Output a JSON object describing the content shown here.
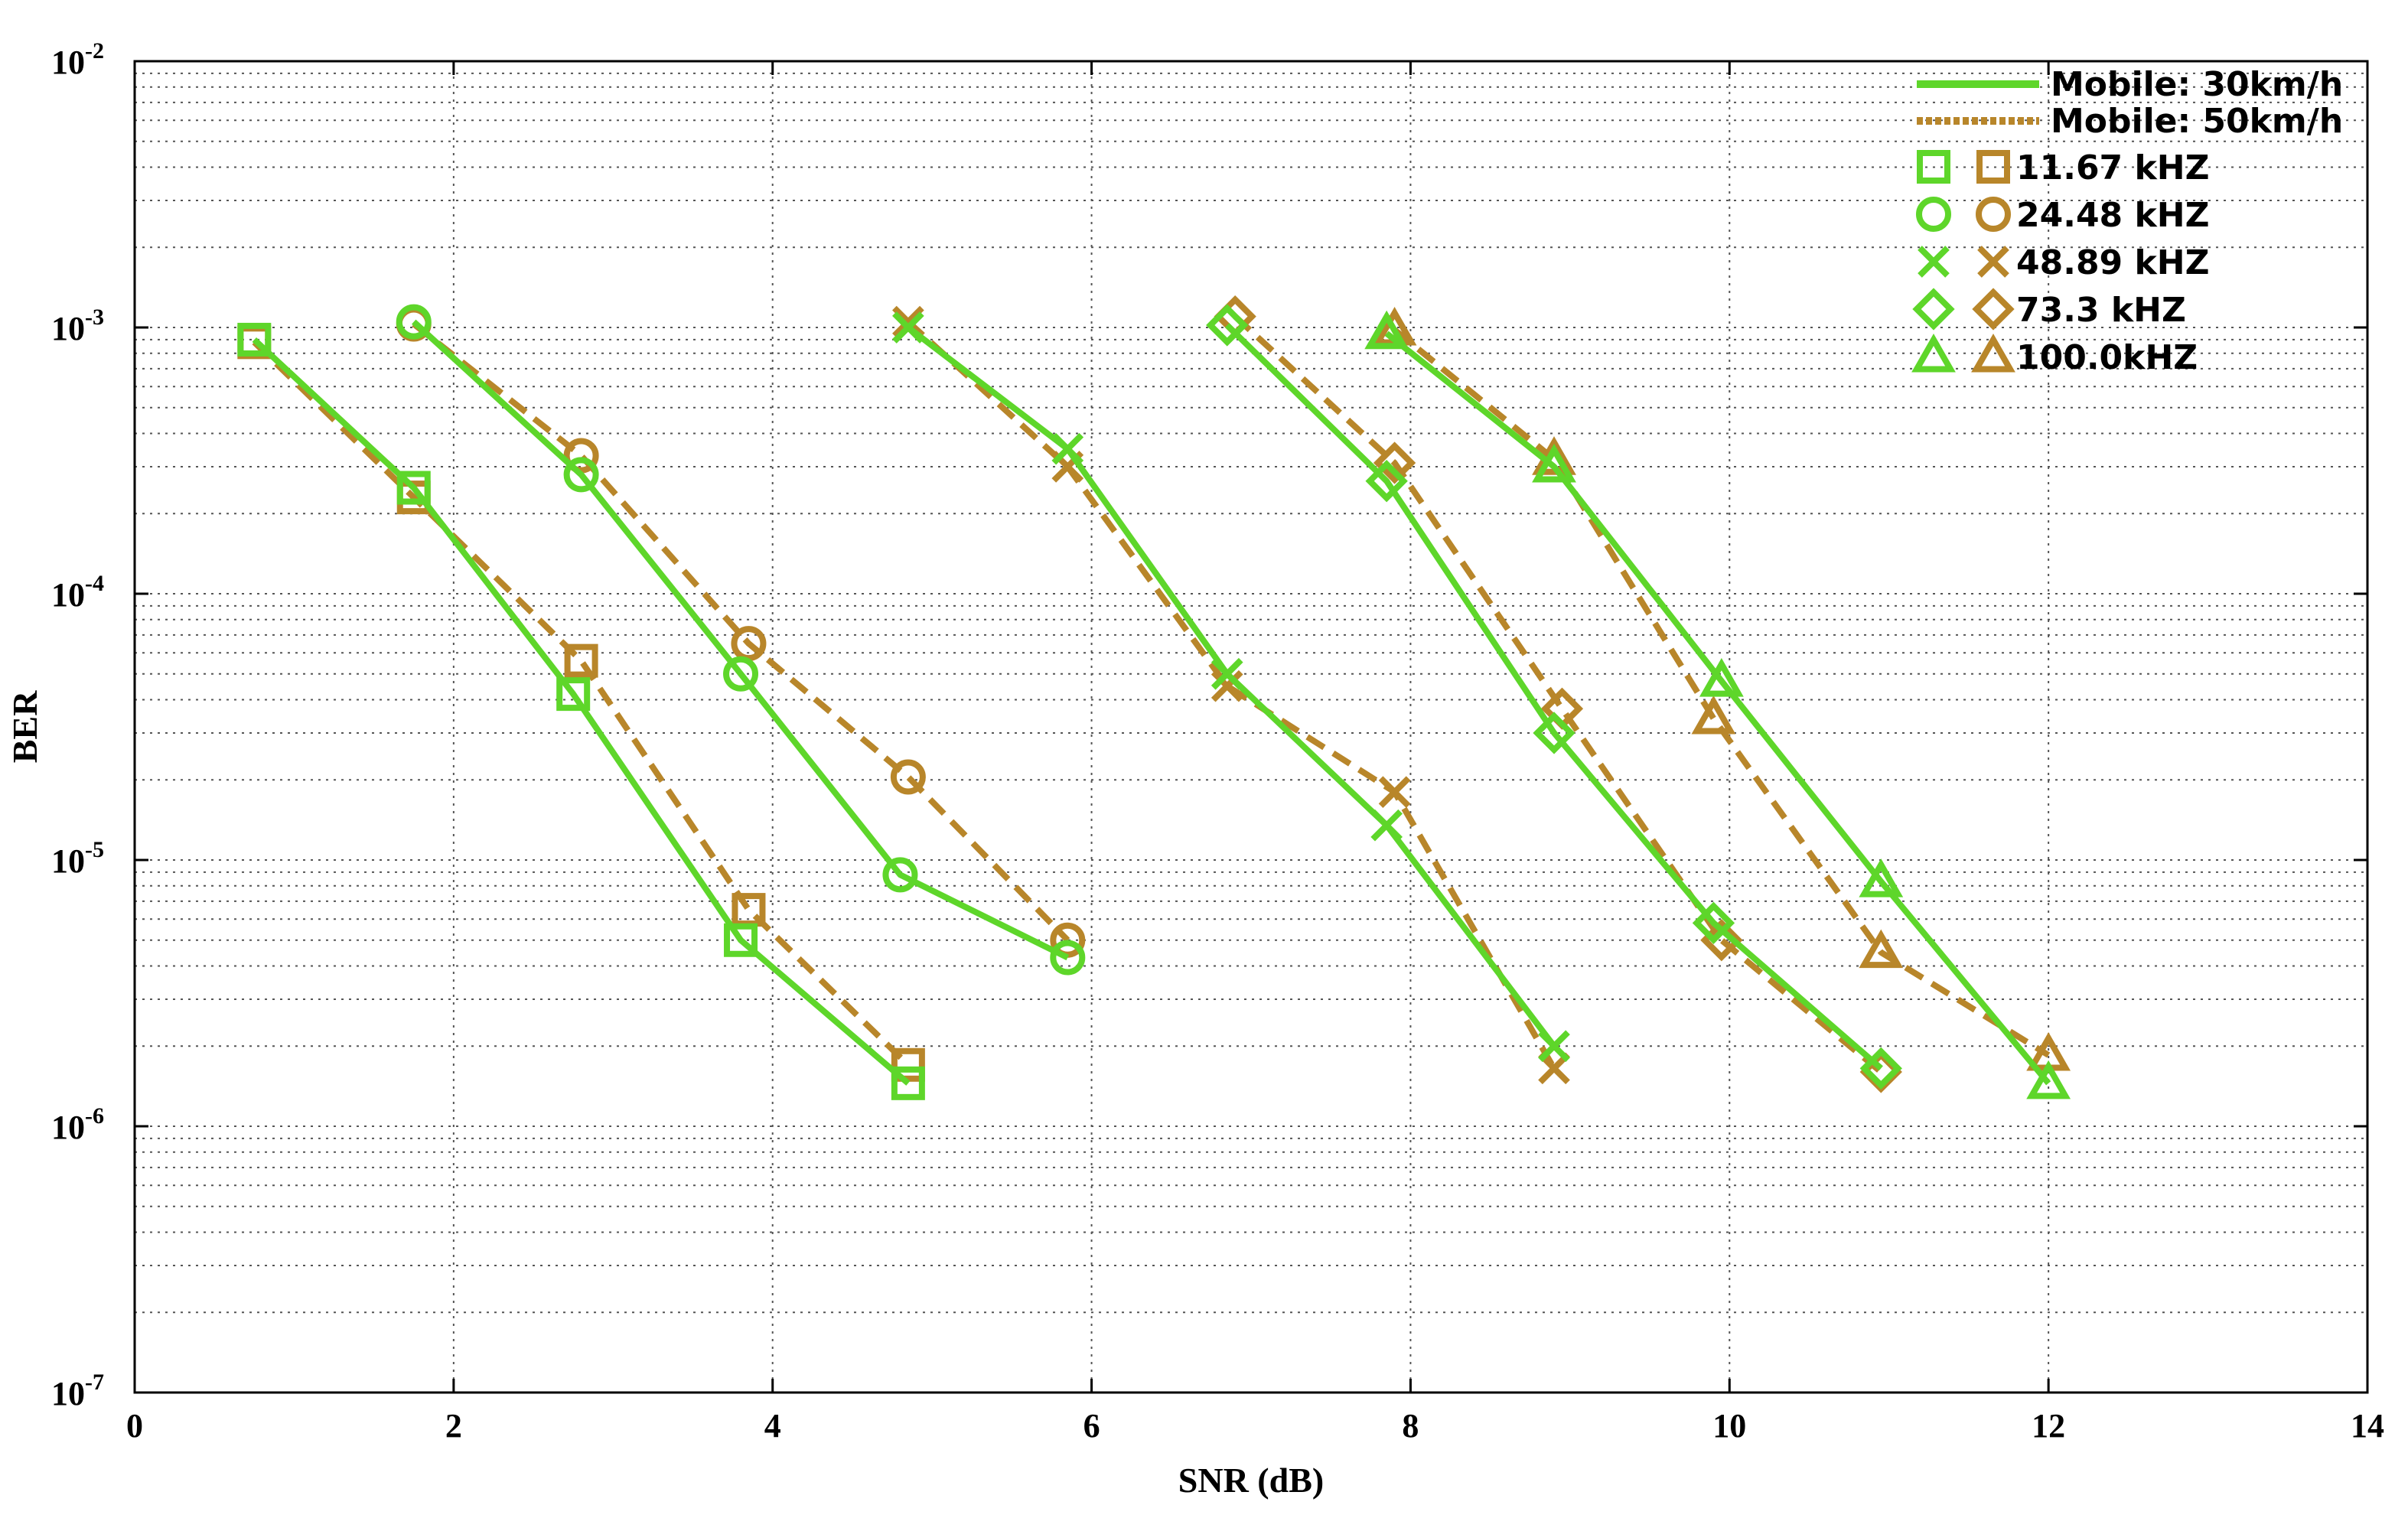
{
  "chart_data": {
    "type": "line",
    "title": "",
    "xlabel": "SNR (dB)",
    "ylabel": "BER",
    "xlim": [
      0,
      14
    ],
    "ylim": [
      1e-07,
      0.01
    ],
    "yscale": "log",
    "grid": true,
    "x_ticks": [
      "0",
      "2",
      "4",
      "6",
      "8",
      "10",
      "12",
      "14"
    ],
    "y_ticks": [
      {
        "base": "10",
        "exp": "-7"
      },
      {
        "base": "10",
        "exp": "-6"
      },
      {
        "base": "10",
        "exp": "-5"
      },
      {
        "base": "10",
        "exp": "-4"
      },
      {
        "base": "10",
        "exp": "-3"
      },
      {
        "base": "10",
        "exp": "-2"
      }
    ],
    "legend": {
      "position": "top-right",
      "line_entries": [
        {
          "label": "Mobile: 30km/h",
          "color": "#5ED62A",
          "style": "solid"
        },
        {
          "label": "Mobile: 50km/h",
          "color": "#B8862A",
          "style": "dashed"
        }
      ],
      "marker_entries": [
        {
          "label": "11.67 kHZ",
          "marker": "square"
        },
        {
          "label": "24.48 kHZ",
          "marker": "circle"
        },
        {
          "label": "48.89 kHZ",
          "marker": "x"
        },
        {
          "label": "73.3 kHZ",
          "marker": "diamond"
        },
        {
          "label": "100.0kHZ",
          "marker": "triangle"
        }
      ]
    },
    "colors": {
      "speed30": "#5ED62A",
      "speed50": "#B8862A"
    },
    "series": [
      {
        "freq": "11.67 kHZ",
        "speed": "30",
        "marker": "square",
        "x": [
          0.75,
          1.75,
          2.75,
          3.8,
          4.85
        ],
        "y": [
          0.0009,
          0.00025,
          4.2e-05,
          5e-06,
          1.45e-06
        ]
      },
      {
        "freq": "11.67 kHZ",
        "speed": "50",
        "marker": "square",
        "x": [
          0.75,
          1.75,
          2.8,
          3.85,
          4.85
        ],
        "y": [
          0.00088,
          0.00023,
          5.6e-05,
          6.5e-06,
          1.7e-06
        ]
      },
      {
        "freq": "24.48 kHZ",
        "speed": "30",
        "marker": "circle",
        "x": [
          1.75,
          2.8,
          3.8,
          4.8,
          5.85
        ],
        "y": [
          0.00105,
          0.00028,
          5e-05,
          8.8e-06,
          4.3e-06
        ]
      },
      {
        "freq": "24.48 kHZ",
        "speed": "50",
        "marker": "circle",
        "x": [
          1.75,
          2.8,
          3.85,
          4.85,
          5.85
        ],
        "y": [
          0.00103,
          0.00033,
          6.5e-05,
          2.05e-05,
          5e-06
        ]
      },
      {
        "freq": "48.89 kHZ",
        "speed": "30",
        "marker": "x",
        "x": [
          4.85,
          5.85,
          6.85,
          7.85,
          8.9
        ],
        "y": [
          0.001,
          0.00035,
          5e-05,
          1.35e-05,
          2e-06
        ]
      },
      {
        "freq": "48.89 kHZ",
        "speed": "50",
        "marker": "x",
        "x": [
          4.85,
          5.85,
          6.85,
          7.9,
          8.9
        ],
        "y": [
          0.00105,
          0.0003,
          4.5e-05,
          1.8e-05,
          1.65e-06
        ]
      },
      {
        "freq": "73.3 kHZ",
        "speed": "30",
        "marker": "diamond",
        "x": [
          6.85,
          7.85,
          8.9,
          9.9,
          10.95
        ],
        "y": [
          0.00102,
          0.000265,
          3e-05,
          5.8e-06,
          1.65e-06
        ]
      },
      {
        "freq": "73.3 kHZ",
        "speed": "50",
        "marker": "diamond",
        "x": [
          6.9,
          7.9,
          8.95,
          9.95,
          10.95
        ],
        "y": [
          0.0011,
          0.00031,
          3.7e-05,
          5e-06,
          1.6e-06
        ]
      },
      {
        "freq": "100.0kHZ",
        "speed": "30",
        "marker": "triangle",
        "x": [
          7.85,
          8.9,
          9.95,
          10.95,
          12
        ],
        "y": [
          0.00095,
          0.0003,
          4.7e-05,
          8.3e-06,
          1.45e-06
        ]
      },
      {
        "freq": "100.0kHZ",
        "speed": "50",
        "marker": "triangle",
        "x": [
          7.9,
          8.9,
          9.9,
          10.95,
          12
        ],
        "y": [
          0.00098,
          0.00032,
          3.4e-05,
          4.5e-06,
          1.85e-06
        ]
      }
    ]
  }
}
